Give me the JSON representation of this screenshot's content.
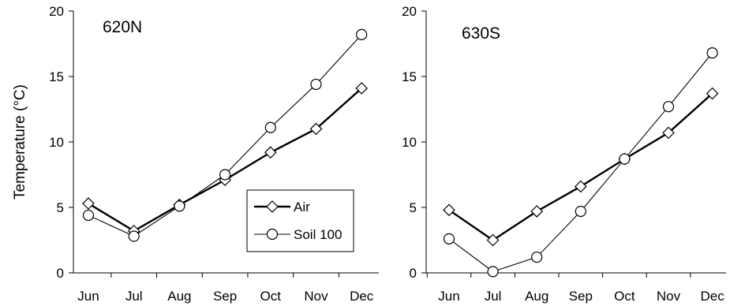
{
  "chart_data": [
    {
      "type": "line",
      "title": "620N",
      "xlabel": "",
      "ylabel": "Temperature (°C)",
      "categories": [
        "Jun",
        "Jul",
        "Aug",
        "Sep",
        "Oct",
        "Nov",
        "Dec"
      ],
      "ylim": [
        0,
        20
      ],
      "yticks": [
        "0",
        "5",
        "10",
        "15",
        "20"
      ],
      "grid": false,
      "legend": "lower-right",
      "series": [
        {
          "name": "Air",
          "marker": "diamond",
          "line": "thick",
          "values": [
            5.3,
            3.2,
            5.2,
            7.1,
            9.2,
            11.0,
            14.1
          ]
        },
        {
          "name": "Soil 100",
          "marker": "circle",
          "line": "thin",
          "values": [
            4.4,
            2.8,
            5.1,
            7.5,
            11.1,
            14.4,
            18.2
          ]
        }
      ]
    },
    {
      "type": "line",
      "title": "630S",
      "xlabel": "",
      "ylabel": "",
      "categories": [
        "Jun",
        "Jul",
        "Aug",
        "Sep",
        "Oct",
        "Nov",
        "Dec"
      ],
      "ylim": [
        0,
        20
      ],
      "yticks": [
        "0",
        "5",
        "10",
        "15",
        "20"
      ],
      "grid": false,
      "series": [
        {
          "name": "Air",
          "marker": "diamond",
          "line": "thick",
          "values": [
            4.8,
            2.5,
            4.7,
            6.6,
            8.7,
            10.7,
            13.7
          ]
        },
        {
          "name": "Soil 100",
          "marker": "circle",
          "line": "thin",
          "values": [
            2.6,
            0.1,
            1.2,
            4.7,
            8.7,
            12.7,
            16.8
          ]
        }
      ]
    }
  ],
  "legend": {
    "items": [
      {
        "label": "Air",
        "marker": "diamond"
      },
      {
        "label": "Soil 100",
        "marker": "circle"
      }
    ]
  },
  "colors": {
    "line": "#000000",
    "marker_fill": "#ffffff",
    "background": "#ffffff"
  }
}
